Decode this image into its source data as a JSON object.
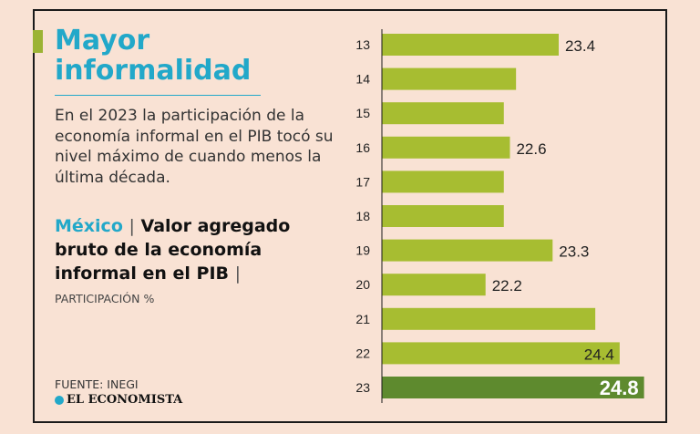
{
  "header": {
    "title_line1": "Mayor",
    "title_line2": "informalidad",
    "subtitle": "En el 2023 la participación de la economía informal en el PIB tocó su nivel máximo de cuando menos la última década."
  },
  "chart_heading": {
    "country": "México",
    "separator": "|",
    "measure": "Valor agregado bruto de la economía informal en el PIB",
    "unit": "PARTICIPACIÓN %"
  },
  "footer": {
    "source": "FUENTE: INEGI",
    "brand": "EL ECONOMISTA"
  },
  "colors": {
    "background": "#f9e2d4",
    "accent": "#22a8c9",
    "bar": "#a7bd31",
    "bar_highlight": "#5e8a2e"
  },
  "chart_data": {
    "type": "bar",
    "orientation": "horizontal",
    "categories": [
      "13",
      "14",
      "15",
      "16",
      "17",
      "18",
      "19",
      "20",
      "21",
      "22",
      "23"
    ],
    "values": [
      23.4,
      22.7,
      22.5,
      22.6,
      22.5,
      22.5,
      23.3,
      22.2,
      24.0,
      24.4,
      24.8
    ],
    "labels": [
      "23.4",
      null,
      null,
      "22.6",
      null,
      null,
      "23.3",
      "22.2",
      null,
      "24.4",
      "24.8"
    ],
    "highlight": "23",
    "xlim": [
      20.5,
      25.0
    ]
  }
}
